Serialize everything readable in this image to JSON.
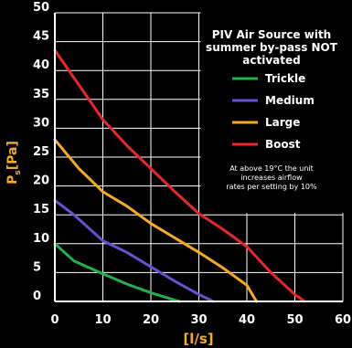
{
  "chart_data": {
    "type": "line",
    "title": "PIV Air Source with summer by-pass NOT activated",
    "title_lines": [
      "PIV Air Source with",
      "summer by-pass NOT",
      "activated"
    ],
    "xlabel": "[l/s]",
    "ylabel_main": "P",
    "ylabel_sub": "s",
    "ylabel_unit": "[Pa]",
    "xlim": [
      0,
      60
    ],
    "ylim": [
      0,
      50
    ],
    "x_ticks": [
      0,
      10,
      20,
      30,
      40,
      50,
      60
    ],
    "y_ticks": [
      0,
      5,
      10,
      15,
      20,
      25,
      30,
      35,
      40,
      45,
      50
    ],
    "grid": true,
    "legend_position": "top-right",
    "series": [
      {
        "name": "Trickle",
        "color": "#22b14c",
        "x": [
          0,
          4,
          10,
          15,
          20,
          25,
          26
        ],
        "y": [
          10,
          7,
          4.8,
          3,
          1.5,
          0.2,
          0
        ]
      },
      {
        "name": "Medium",
        "color": "#6a4fd1",
        "x": [
          0,
          4,
          10,
          15,
          20,
          25,
          30,
          33
        ],
        "y": [
          17.5,
          15,
          10.5,
          8.5,
          6,
          3.5,
          1.2,
          0
        ]
      },
      {
        "name": "Large",
        "color": "#f3ab1f",
        "x": [
          0,
          5,
          10,
          15,
          20,
          25,
          30,
          35,
          40,
          42
        ],
        "y": [
          28,
          23,
          19,
          16.5,
          13.5,
          11,
          8.5,
          5.8,
          2.8,
          0
        ]
      },
      {
        "name": "Boost",
        "color": "#e8272c",
        "x": [
          0,
          5,
          10,
          15,
          20,
          25,
          30,
          35,
          40,
          45,
          50,
          52
        ],
        "y": [
          43.5,
          37.5,
          31.5,
          27,
          23,
          19,
          15.2,
          12.5,
          9.5,
          5,
          1.2,
          0
        ]
      }
    ],
    "annotation_lines": [
      "At above 19°C the unit",
      "increases airflow",
      "rates per setting by 10%"
    ]
  }
}
